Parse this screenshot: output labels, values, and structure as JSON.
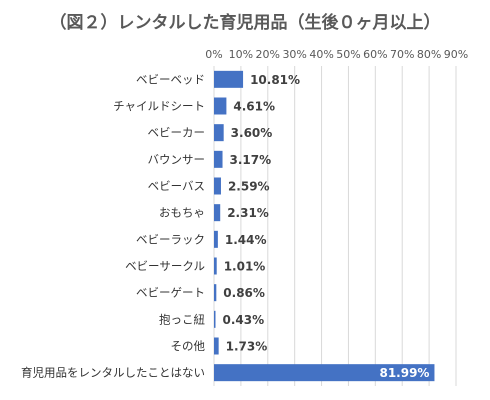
{
  "chart_data": {
    "type": "bar",
    "orientation": "horizontal",
    "title": "（図２）レンタルした育児用品（生後０ヶ月以上）",
    "xlabel": "",
    "ylabel": "",
    "xlim": [
      0,
      90
    ],
    "x_ticks": [
      "0%",
      "10%",
      "20%",
      "30%",
      "40%",
      "50%",
      "60%",
      "70%",
      "80%",
      "90%"
    ],
    "tick_position": "top",
    "grid": true,
    "legend": "none",
    "bar_color": "#4472c4",
    "categories": [
      "ベビーベッド",
      "チャイルドシート",
      "ベビーカー",
      "バウンサー",
      "ベビーバス",
      "おもちゃ",
      "ベビーラック",
      "ベビーサークル",
      "ベビーゲート",
      "抱っこ紐",
      "その他",
      "育児用品をレンタルしたことはない"
    ],
    "values": [
      10.81,
      4.61,
      3.6,
      3.17,
      2.59,
      2.31,
      1.44,
      1.01,
      0.86,
      0.43,
      1.73,
      81.99
    ],
    "data_labels": [
      "10.81%",
      "4.61%",
      "3.60%",
      "3.17%",
      "2.59%",
      "2.31%",
      "1.44%",
      "1.01%",
      "0.86%",
      "0.43%",
      "1.73%",
      "81.99%"
    ]
  }
}
